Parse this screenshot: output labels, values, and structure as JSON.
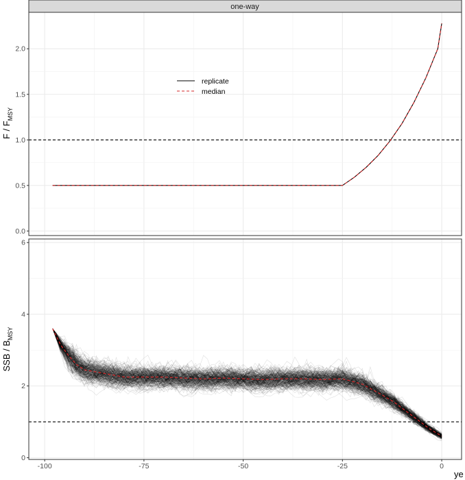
{
  "facet_label": "one-way",
  "legend": {
    "items": [
      {
        "label": "replicate",
        "color": "#000000",
        "dash": "solid"
      },
      {
        "label": "median",
        "color": "#d62728",
        "dash": "dashed"
      }
    ]
  },
  "x_axis": {
    "label": "ye",
    "ticks": [
      -100,
      -75,
      -50,
      -25,
      0
    ],
    "tick_labels": [
      "-100",
      "-75",
      "-50",
      "-25",
      "0"
    ],
    "range": [
      -104,
      5
    ]
  },
  "chart_data": [
    {
      "type": "line",
      "panel": "top",
      "ylabel": "F / F_MSY",
      "ylabel_main": "F / F",
      "ylabel_sub": "MSY",
      "ylim": [
        -0.05,
        2.4
      ],
      "yticks": [
        0.0,
        0.5,
        1.0,
        1.5,
        2.0
      ],
      "ytick_labels": [
        "0.0",
        "0.5",
        "1.0",
        "1.5",
        "2.0"
      ],
      "reference_line": 1.0,
      "series": [
        {
          "name": "median",
          "x": [
            -98,
            -90,
            -80,
            -70,
            -60,
            -50,
            -40,
            -30,
            -25,
            -22,
            -19,
            -16,
            -13,
            -10,
            -7,
            -4,
            -1,
            0
          ],
          "values": [
            0.5,
            0.5,
            0.5,
            0.5,
            0.5,
            0.5,
            0.5,
            0.5,
            0.5,
            0.59,
            0.7,
            0.83,
            0.99,
            1.18,
            1.41,
            1.68,
            2.0,
            2.28
          ]
        }
      ]
    },
    {
      "type": "line",
      "panel": "bottom",
      "ylabel": "SSB / B_MSY",
      "ylabel_main": "SSB / B",
      "ylabel_sub": "MSY",
      "ylim": [
        -0.05,
        6.1
      ],
      "yticks": [
        0,
        2,
        4,
        6
      ],
      "ytick_labels": [
        "0",
        "2",
        "4",
        "6"
      ],
      "reference_line": 1.0,
      "replicate_count": 250,
      "series": [
        {
          "name": "median",
          "x": [
            -98,
            -96,
            -94,
            -92,
            -90,
            -85,
            -80,
            -75,
            -70,
            -65,
            -60,
            -55,
            -50,
            -45,
            -40,
            -35,
            -30,
            -25,
            -20,
            -15,
            -12,
            -9,
            -6,
            -3,
            0
          ],
          "values": [
            3.6,
            3.15,
            2.85,
            2.6,
            2.45,
            2.35,
            2.25,
            2.25,
            2.25,
            2.22,
            2.2,
            2.22,
            2.2,
            2.18,
            2.2,
            2.2,
            2.18,
            2.2,
            2.05,
            1.75,
            1.55,
            1.3,
            1.05,
            0.8,
            0.6
          ]
        }
      ]
    }
  ]
}
